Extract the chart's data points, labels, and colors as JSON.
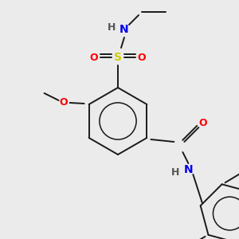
{
  "background_color": "#ebebeb",
  "fig_width": 3.0,
  "fig_height": 3.0,
  "dpi": 100,
  "colors": {
    "bond": "#1a1a1a",
    "S": "#cccc00",
    "O": "#ff0000",
    "N": "#0000ee",
    "H": "#555555",
    "C": "#1a1a1a"
  }
}
